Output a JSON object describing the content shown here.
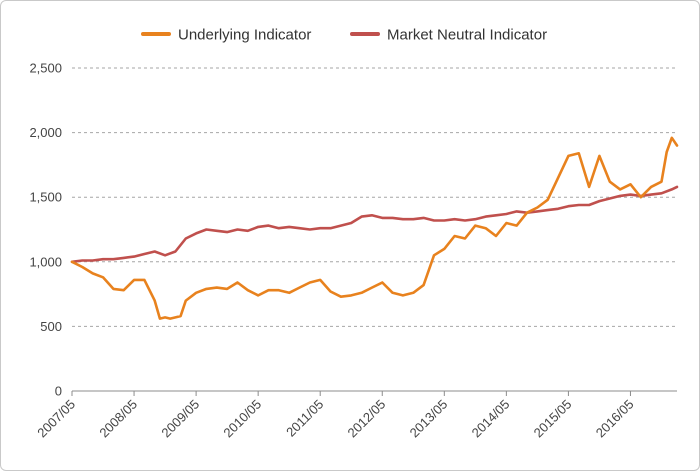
{
  "chart_data": {
    "type": "line",
    "title": "",
    "xlabel": "",
    "ylabel": "",
    "x_range": [
      "2007/05",
      "2017/02"
    ],
    "x_ticks": [
      "2007/05",
      "2008/05",
      "2009/05",
      "2010/05",
      "2011/05",
      "2012/05",
      "2013/05",
      "2014/05",
      "2015/05",
      "2016/05"
    ],
    "ylim": [
      0,
      2500
    ],
    "y_ticks": [
      0,
      500,
      1000,
      1500,
      2000,
      2500
    ],
    "y_tick_labels": [
      "0",
      "500",
      "1,000",
      "1,500",
      "2,000",
      "2,500"
    ],
    "grid": "horizontal dashed",
    "legend_position": "top-center",
    "series": [
      {
        "name": "Underlying Indicator",
        "color": "#E8821E",
        "x": [
          "2007/05",
          "2007/07",
          "2007/09",
          "2007/11",
          "2008/01",
          "2008/03",
          "2008/05",
          "2008/07",
          "2008/09",
          "2008/10",
          "2008/11",
          "2008/12",
          "2009/02",
          "2009/03",
          "2009/05",
          "2009/07",
          "2009/09",
          "2009/11",
          "2010/01",
          "2010/03",
          "2010/05",
          "2010/07",
          "2010/09",
          "2010/11",
          "2011/01",
          "2011/03",
          "2011/05",
          "2011/07",
          "2011/09",
          "2011/11",
          "2012/01",
          "2012/03",
          "2012/05",
          "2012/07",
          "2012/09",
          "2012/11",
          "2013/01",
          "2013/03",
          "2013/05",
          "2013/07",
          "2013/09",
          "2013/11",
          "2014/01",
          "2014/03",
          "2014/05",
          "2014/07",
          "2014/09",
          "2014/11",
          "2015/01",
          "2015/03",
          "2015/05",
          "2015/07",
          "2015/09",
          "2015/11",
          "2016/01",
          "2016/03",
          "2016/05",
          "2016/07",
          "2016/09",
          "2016/11",
          "2016/12",
          "2017/01",
          "2017/02"
        ],
        "y": [
          1000,
          960,
          910,
          880,
          790,
          780,
          860,
          860,
          700,
          560,
          570,
          560,
          580,
          700,
          760,
          790,
          800,
          790,
          840,
          780,
          740,
          780,
          780,
          760,
          800,
          840,
          860,
          770,
          730,
          740,
          760,
          800,
          840,
          760,
          740,
          760,
          820,
          1050,
          1100,
          1200,
          1180,
          1280,
          1260,
          1200,
          1300,
          1280,
          1380,
          1420,
          1480,
          1650,
          1820,
          1840,
          1580,
          1820,
          1620,
          1560,
          1600,
          1500,
          1580,
          1620,
          1850,
          1960,
          1900
        ]
      },
      {
        "name": "Market Neutral Indicator",
        "color": "#C0504D",
        "x": [
          "2007/05",
          "2007/07",
          "2007/09",
          "2007/11",
          "2008/01",
          "2008/03",
          "2008/05",
          "2008/07",
          "2008/09",
          "2008/11",
          "2009/01",
          "2009/03",
          "2009/05",
          "2009/07",
          "2009/09",
          "2009/11",
          "2010/01",
          "2010/03",
          "2010/05",
          "2010/07",
          "2010/09",
          "2010/11",
          "2011/01",
          "2011/03",
          "2011/05",
          "2011/07",
          "2011/09",
          "2011/11",
          "2012/01",
          "2012/03",
          "2012/05",
          "2012/07",
          "2012/09",
          "2012/11",
          "2013/01",
          "2013/03",
          "2013/05",
          "2013/07",
          "2013/09",
          "2013/11",
          "2014/01",
          "2014/03",
          "2014/05",
          "2014/07",
          "2014/09",
          "2014/11",
          "2015/01",
          "2015/03",
          "2015/05",
          "2015/07",
          "2015/09",
          "2015/11",
          "2016/01",
          "2016/03",
          "2016/05",
          "2016/07",
          "2016/09",
          "2016/11",
          "2017/01",
          "2017/02"
        ],
        "y": [
          1000,
          1010,
          1010,
          1020,
          1020,
          1030,
          1040,
          1060,
          1080,
          1050,
          1080,
          1180,
          1220,
          1250,
          1240,
          1230,
          1250,
          1240,
          1270,
          1280,
          1260,
          1270,
          1260,
          1250,
          1260,
          1260,
          1280,
          1300,
          1350,
          1360,
          1340,
          1340,
          1330,
          1330,
          1340,
          1320,
          1320,
          1330,
          1320,
          1330,
          1350,
          1360,
          1370,
          1390,
          1380,
          1390,
          1400,
          1410,
          1430,
          1440,
          1440,
          1470,
          1490,
          1510,
          1520,
          1510,
          1520,
          1530,
          1560,
          1580
        ]
      }
    ]
  }
}
